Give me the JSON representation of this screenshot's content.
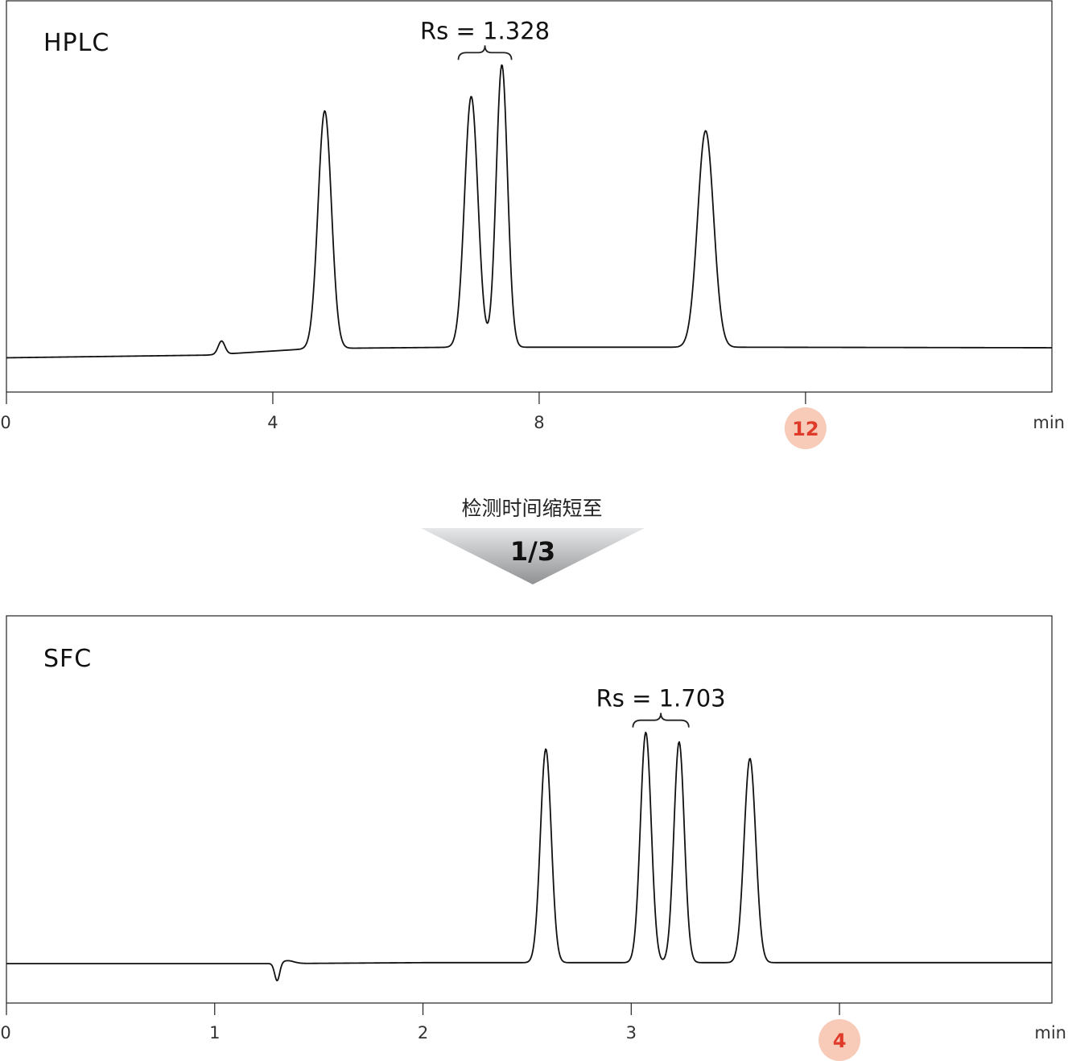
{
  "chart_data": [
    {
      "type": "line",
      "title": "HPLC",
      "xlabel": "min",
      "x_ticks": [
        0,
        4,
        8,
        12
      ],
      "x_range": [
        0,
        15.7
      ],
      "highlight_tick": "12",
      "annotation": "Rs = 1.328",
      "annotation_peaks": [
        6.98,
        7.44
      ],
      "baseline": [
        [
          0,
          0.02
        ],
        [
          3.0,
          0.03
        ],
        [
          4.6,
          0.055
        ],
        [
          6.8,
          0.06
        ],
        [
          11.0,
          0.06
        ],
        [
          15.7,
          0.058
        ]
      ],
      "peaks": [
        {
          "x": 3.23,
          "height": 0.05,
          "width": 0.05
        },
        {
          "x": 4.78,
          "height": 0.9,
          "width": 0.1
        },
        {
          "x": 6.98,
          "height": 0.95,
          "width": 0.1
        },
        {
          "x": 7.44,
          "height": 1.07,
          "width": 0.085
        },
        {
          "x": 10.5,
          "height": 0.82,
          "width": 0.12
        }
      ]
    },
    {
      "type": "line",
      "title": "SFC",
      "xlabel": "min",
      "x_ticks": [
        0,
        1,
        2,
        3,
        4
      ],
      "x_range": [
        0,
        5.02
      ],
      "highlight_tick": "4",
      "annotation": "Rs = 1.703",
      "annotation_peaks": [
        3.07,
        3.23
      ],
      "baseline": [
        [
          0,
          0.0
        ],
        [
          1.3,
          0.0
        ],
        [
          2.0,
          0.004
        ],
        [
          5.0,
          0.004
        ]
      ],
      "dip": {
        "x": 1.3,
        "depth": -0.075
      },
      "peaks": [
        {
          "x": 2.59,
          "height": 0.9,
          "width": 0.026
        },
        {
          "x": 3.07,
          "height": 0.97,
          "width": 0.026
        },
        {
          "x": 3.23,
          "height": 0.93,
          "width": 0.025
        },
        {
          "x": 3.57,
          "height": 0.86,
          "width": 0.028
        }
      ]
    }
  ],
  "reduction": {
    "text": "检测时间缩短至",
    "value": "1/3"
  }
}
